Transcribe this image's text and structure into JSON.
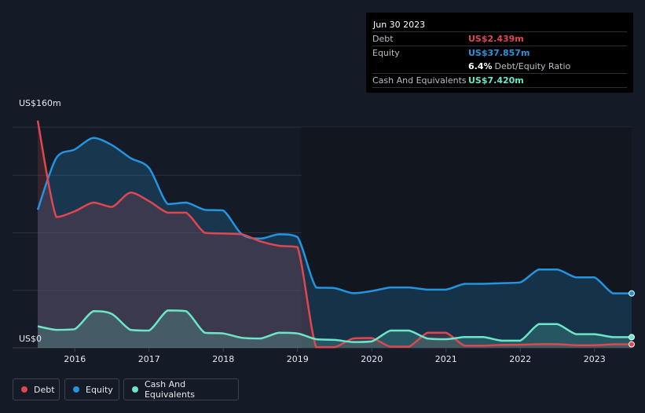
{
  "tooltip": {
    "date": "Jun 30 2023",
    "debt_label": "Debt",
    "debt_value": "US$2.439m",
    "equity_label": "Equity",
    "equity_value": "US$37.857m",
    "ratio_value": "6.4%",
    "ratio_label": "Debt/Equity Ratio",
    "cash_label": "Cash And Equivalents",
    "cash_value": "US$7.420m"
  },
  "legend": {
    "debt": "Debt",
    "equity": "Equity",
    "cash": "Cash And Equivalents"
  },
  "colors": {
    "debt": "#e0464f",
    "equity": "#2394df",
    "cash": "#6ce5c9",
    "background": "#151b26"
  },
  "chart_data": {
    "type": "area",
    "title": "",
    "xlabel": "",
    "ylabel": "",
    "y_top_label": "US$160m",
    "y_bottom_label": "US$0",
    "xlim": [
      2015.5,
      2023.5
    ],
    "ylim": [
      0,
      160
    ],
    "x_ticks": [
      "2016",
      "2017",
      "2018",
      "2019",
      "2020",
      "2021",
      "2022",
      "2023"
    ],
    "x_tick_values": [
      2016,
      2017,
      2018,
      2019,
      2020,
      2021,
      2022,
      2023
    ],
    "series": [
      {
        "name": "Debt",
        "x": [
          2015.5,
          2015.75,
          2016.0,
          2016.25,
          2016.5,
          2016.75,
          2017.0,
          2017.25,
          2017.5,
          2017.75,
          2018.0,
          2018.25,
          2018.5,
          2018.75,
          2019.0,
          2019.25,
          2019.5,
          2019.75,
          2020.0,
          2020.25,
          2020.5,
          2020.75,
          2021.0,
          2021.25,
          2021.5,
          2021.75,
          2022.0,
          2022.25,
          2022.5,
          2022.75,
          2023.0,
          2023.25,
          2023.5
        ],
        "values": [
          158,
          91,
          95,
          101,
          98,
          108,
          102,
          94,
          94,
          80,
          79.5,
          79,
          74,
          71,
          70,
          0.5,
          0.5,
          6.5,
          6.8,
          0.8,
          0.8,
          10.5,
          10.5,
          1.5,
          1.5,
          2,
          2.2,
          2.5,
          2.5,
          1.8,
          1.8,
          2.439,
          2.439
        ]
      },
      {
        "name": "Equity",
        "x": [
          2015.5,
          2015.75,
          2016.0,
          2016.25,
          2016.5,
          2016.75,
          2017.0,
          2017.25,
          2017.5,
          2017.75,
          2018.0,
          2018.25,
          2018.5,
          2018.75,
          2019.0,
          2019.25,
          2019.5,
          2019.75,
          2020.0,
          2020.25,
          2020.5,
          2020.75,
          2021.0,
          2021.25,
          2021.5,
          2021.75,
          2022.0,
          2022.25,
          2022.5,
          2022.75,
          2023.0,
          2023.25,
          2023.5
        ],
        "values": [
          96,
          132,
          138,
          146,
          141,
          132,
          125,
          100,
          101,
          96,
          95.5,
          79,
          76,
          79,
          77,
          42,
          41.5,
          38,
          39.5,
          42,
          42,
          40.5,
          40.5,
          44.5,
          44.5,
          45,
          45.5,
          54.5,
          54.5,
          49,
          49,
          37.857,
          37.857
        ]
      },
      {
        "name": "Cash And Equivalents",
        "x": [
          2015.5,
          2015.75,
          2016.0,
          2016.25,
          2016.5,
          2016.75,
          2017.0,
          2017.25,
          2017.5,
          2017.75,
          2018.0,
          2018.25,
          2018.5,
          2018.75,
          2019.0,
          2019.25,
          2019.5,
          2019.75,
          2020.0,
          2020.25,
          2020.5,
          2020.75,
          2021.0,
          2021.25,
          2021.5,
          2021.75,
          2022.0,
          2022.25,
          2022.5,
          2022.75,
          2023.0,
          2023.25,
          2023.5
        ],
        "values": [
          15,
          12.5,
          13,
          25.5,
          23.5,
          12.5,
          12,
          26,
          25.5,
          10.5,
          10,
          7,
          6.5,
          10.5,
          10,
          6,
          5.5,
          4,
          4.5,
          12,
          12,
          6.5,
          6,
          7.5,
          7.5,
          5,
          5,
          16.5,
          16.5,
          9.5,
          9.5,
          7.42,
          7.42
        ]
      }
    ]
  }
}
